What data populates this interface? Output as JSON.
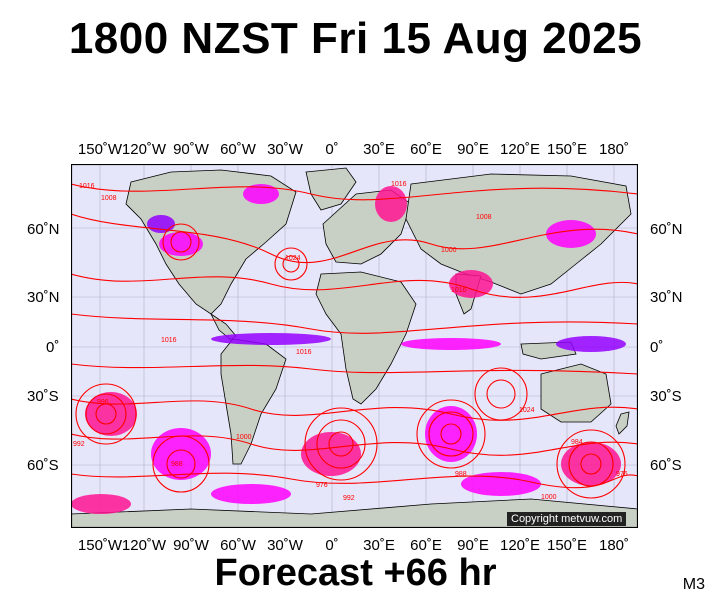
{
  "title": "1800 NZST Fri 15 Aug 2025",
  "forecast": "Forecast +66 hr",
  "model": "M3",
  "copyright": "Copyright metvuw.com",
  "lon_labels": [
    "150˚W",
    "120˚W",
    "90˚W",
    "60˚W",
    "30˚W",
    "0˚",
    "30˚E",
    "60˚E",
    "90˚E",
    "120˚E",
    "150˚E",
    "180˚"
  ],
  "lat_labels": [
    "60˚N",
    "30˚N",
    "0˚",
    "30˚S",
    "60˚S"
  ],
  "isobar_labels": [
    "1016",
    "1008",
    "1024",
    "1016",
    "1008",
    "1016",
    "1000",
    "1016",
    "1016",
    "1024",
    "996",
    "992",
    "976",
    "988",
    "992",
    "988",
    "1000",
    "984",
    "976",
    "1000"
  ],
  "colors": {
    "ocean": "#e6e6fa",
    "land": "#c8cfc4",
    "isobar": "#ff0000",
    "precip_magenta": "#ff00ff",
    "precip_pink": "#ff1493",
    "precip_violet": "#9400ff"
  }
}
